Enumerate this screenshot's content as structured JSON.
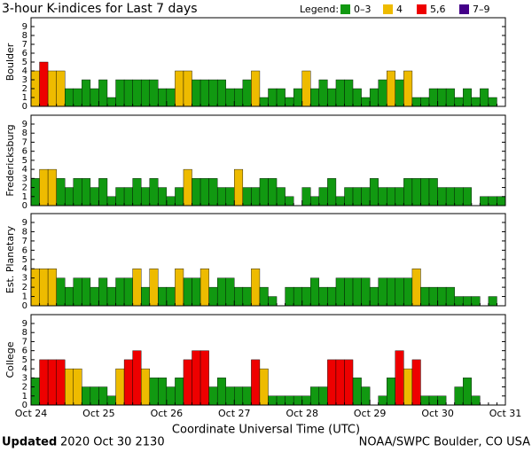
{
  "title": "3-hour K-indices for Last 7 days",
  "legend": {
    "title": "Legend:",
    "items": [
      {
        "label": "0–3",
        "color": "#119911"
      },
      {
        "label": "4",
        "color": "#eebb00"
      },
      {
        "label": "5,6",
        "color": "#ee0000"
      },
      {
        "label": "7–9",
        "color": "#440088"
      }
    ]
  },
  "x_tick_labels": [
    "Oct 24",
    "Oct 25",
    "Oct 26",
    "Oct 27",
    "Oct 28",
    "Oct 29",
    "Oct 30",
    "Oct 31"
  ],
  "xlabel": "Coordinate Universal Time (UTC)",
  "footer": {
    "updated": "Updated",
    "time": "2020 Oct 30 2130",
    "source": "NOAA/SWPC Boulder, CO USA"
  },
  "chart_data": [
    {
      "type": "bar",
      "ylabel": "Boulder",
      "ylim": [
        0,
        9
      ],
      "yticks": [
        0,
        1,
        2,
        3,
        4,
        5,
        6,
        7,
        8,
        9
      ],
      "values": [
        4,
        5,
        4,
        4,
        2,
        2,
        3,
        2,
        3,
        1,
        3,
        3,
        3,
        3,
        3,
        2,
        2,
        4,
        4,
        3,
        3,
        3,
        3,
        2,
        2,
        3,
        4,
        1,
        2,
        2,
        1,
        2,
        4,
        2,
        3,
        2,
        3,
        3,
        2,
        1,
        2,
        3,
        4,
        3,
        4,
        1,
        1,
        2,
        2,
        2,
        1,
        2,
        1,
        2,
        1,
        0
      ]
    },
    {
      "type": "bar",
      "ylabel": "Fredericksburg",
      "ylim": [
        0,
        9
      ],
      "yticks": [
        0,
        1,
        2,
        3,
        4,
        5,
        6,
        7,
        8,
        9
      ],
      "values": [
        3,
        4,
        4,
        3,
        2,
        3,
        3,
        2,
        3,
        1,
        2,
        2,
        3,
        2,
        3,
        2,
        1,
        2,
        4,
        3,
        3,
        3,
        2,
        2,
        4,
        2,
        2,
        3,
        3,
        2,
        1,
        0,
        2,
        1,
        2,
        3,
        1,
        2,
        2,
        2,
        3,
        2,
        2,
        2,
        3,
        3,
        3,
        3,
        2,
        2,
        2,
        2,
        0,
        1,
        1,
        1
      ]
    },
    {
      "type": "bar",
      "ylabel": "Est. Planetary",
      "ylim": [
        0,
        9
      ],
      "yticks": [
        0,
        1,
        2,
        3,
        4,
        5,
        6,
        7,
        8,
        9
      ],
      "values": [
        4,
        4,
        4,
        3,
        2,
        3,
        3,
        2,
        3,
        2,
        3,
        3,
        4,
        2,
        4,
        2,
        2,
        4,
        3,
        3,
        4,
        2,
        3,
        3,
        2,
        2,
        4,
        2,
        1,
        0,
        2,
        2,
        2,
        3,
        2,
        2,
        3,
        3,
        3,
        3,
        2,
        3,
        3,
        3,
        3,
        4,
        2,
        2,
        2,
        2,
        1,
        1,
        1,
        0,
        1,
        0
      ]
    },
    {
      "type": "bar",
      "ylabel": "College",
      "ylim": [
        0,
        9
      ],
      "yticks": [
        0,
        1,
        2,
        3,
        4,
        5,
        6,
        7,
        8,
        9
      ],
      "values": [
        3,
        5,
        5,
        5,
        4,
        4,
        2,
        2,
        2,
        1,
        4,
        5,
        6,
        4,
        3,
        3,
        2,
        3,
        5,
        6,
        6,
        2,
        3,
        2,
        2,
        2,
        5,
        4,
        1,
        1,
        1,
        1,
        1,
        2,
        2,
        5,
        5,
        5,
        3,
        2,
        0,
        1,
        3,
        6,
        4,
        5,
        1,
        1,
        1,
        0,
        2,
        3,
        1,
        0,
        0,
        0
      ]
    }
  ]
}
